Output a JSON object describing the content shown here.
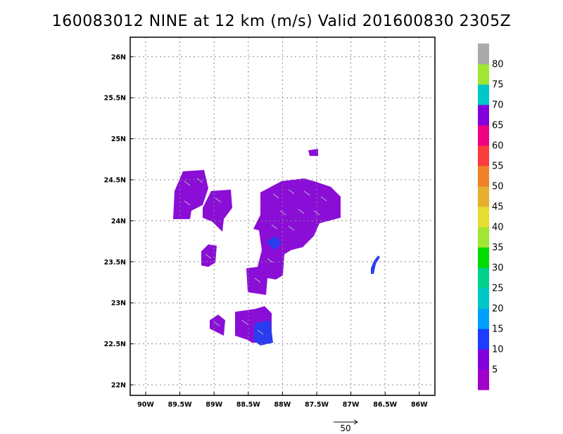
{
  "title": "160083012 NINE at 12 km (m/s) Valid 201600830 2305Z",
  "map": {
    "lat_ticks": [
      "22N",
      "22.5N",
      "23N",
      "23.5N",
      "24N",
      "24.5N",
      "25N",
      "25.5N",
      "26N"
    ],
    "lon_ticks": [
      "90W",
      "89.5W",
      "89W",
      "88.5W",
      "88W",
      "87.5W",
      "87W",
      "86.5W",
      "86W"
    ],
    "grid": "dotted",
    "ylim": [
      21.9,
      26.2
    ],
    "xlim": [
      -90.2,
      -85.95
    ]
  },
  "colorbar": {
    "labels": [
      "5",
      "10",
      "15",
      "20",
      "25",
      "30",
      "35",
      "40",
      "45",
      "50",
      "55",
      "60",
      "65",
      "70",
      "75",
      "80"
    ],
    "colors": [
      "#a000c8",
      "#8200dc",
      "#1e3cff",
      "#00a0ff",
      "#00c8c8",
      "#00d28c",
      "#00dc00",
      "#a0e632",
      "#e6dc32",
      "#e6af2d",
      "#f08228",
      "#fa3c3c",
      "#f00082",
      "#8200dc",
      "#00c8c8",
      "#a0e632",
      "#aaaaaa"
    ]
  },
  "reference_vector": {
    "label": "50"
  }
}
